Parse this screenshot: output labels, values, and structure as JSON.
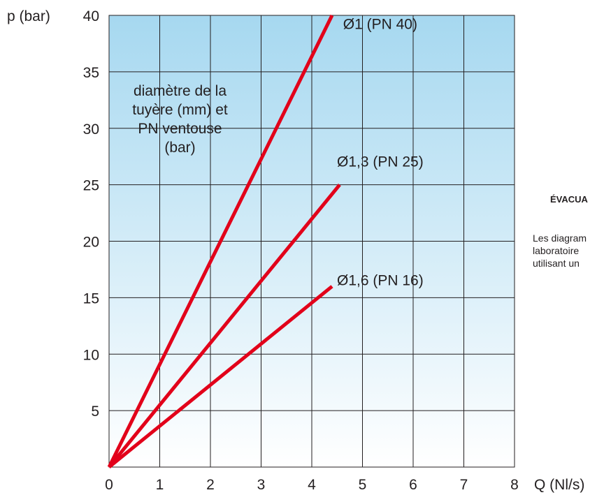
{
  "chart_data": {
    "type": "line",
    "ylabel": "p (bar)",
    "xlabel": "Q (Nl/s)",
    "xlim": [
      0,
      8
    ],
    "ylim": [
      0,
      40
    ],
    "xticks": [
      "0",
      "1",
      "2",
      "3",
      "4",
      "5",
      "6",
      "7",
      "8"
    ],
    "yticks": [
      "5",
      "10",
      "15",
      "20",
      "25",
      "30",
      "35",
      "40"
    ],
    "grid": true,
    "annotation": [
      "diamètre de la",
      "tuyère (mm) et",
      "PN ventouse",
      "(bar)"
    ],
    "series": [
      {
        "name": "Ø1 (PN 40)",
        "x": [
          0,
          4.4
        ],
        "y": [
          0,
          40
        ]
      },
      {
        "name": "Ø1,3 (PN 25)",
        "x": [
          0,
          4.55
        ],
        "y": [
          0,
          25
        ]
      },
      {
        "name": "Ø1,6 (PN 16)",
        "x": [
          0,
          4.4
        ],
        "y": [
          0,
          16
        ]
      }
    ],
    "colors": {
      "line": "#e2001a",
      "grid": "#231f20",
      "bg_top": "#a6d8f0",
      "bg_bottom": "#ffffff"
    }
  },
  "side_panel": {
    "heading": "ÉVACUA",
    "body": [
      "Les diagram",
      "laboratoire",
      "utilisant un"
    ]
  }
}
